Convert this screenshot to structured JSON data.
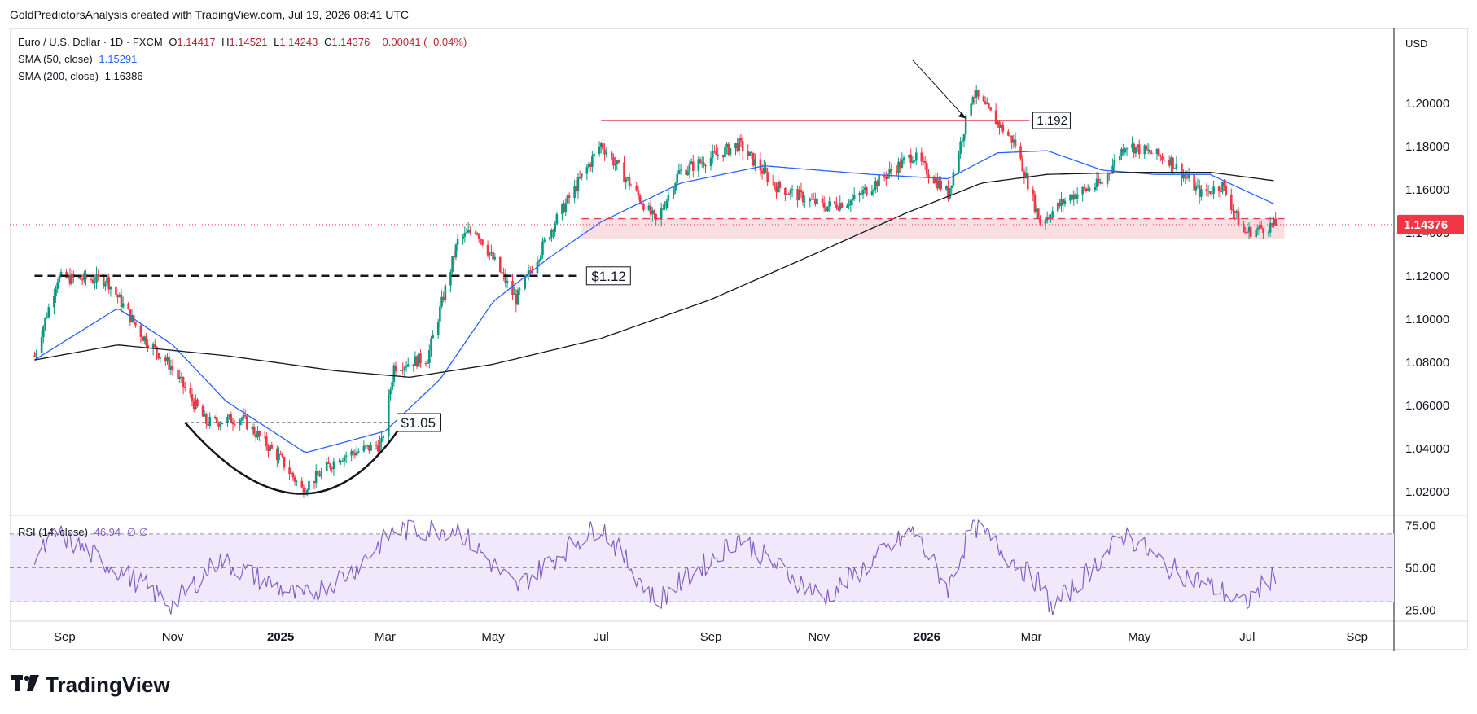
{
  "header": {
    "attribution": "GoldPredictorsAnalysis created with TradingView.com, Jul 19, 2026 08:41 UTC"
  },
  "legend": {
    "symbol": "Euro / U.S. Dollar · 1D · FXCM",
    "open_label": "O",
    "open": "1.14417",
    "high_label": "H",
    "high": "1.14521",
    "low_label": "L",
    "low": "1.14243",
    "close_label": "C",
    "close": "1.14376",
    "change": "−0.00041 (−0.04%)",
    "sma50_label": "SMA (50, close)",
    "sma50_value": "1.15291",
    "sma200_label": "SMA (200, close)",
    "sma200_value": "1.16386",
    "rsi_label": "RSI (14, close)",
    "rsi_value": "46.94",
    "rsi_extra": "∅  ∅"
  },
  "price_axis": {
    "currency": "USD",
    "ticks": [
      "1.20000",
      "1.18000",
      "1.16000",
      "1.14000",
      "1.12000",
      "1.10000",
      "1.08000",
      "1.06000",
      "1.04000",
      "1.02000"
    ],
    "last_price": "1.14376"
  },
  "rsi_axis": {
    "ticks": [
      "75.00",
      "50.00",
      "25.00"
    ]
  },
  "time_axis": {
    "labels": [
      "Sep",
      "Nov",
      "2025",
      "Mar",
      "May",
      "Jul",
      "Sep",
      "Nov",
      "2026",
      "Mar",
      "May",
      "Jul",
      "Sep"
    ]
  },
  "annotations": {
    "level_112": "$1.12",
    "level_105": "$1.05",
    "level_1192": "1.192"
  },
  "colors": {
    "up": "#089981",
    "down": "#f23645",
    "sma50": "#2962ff",
    "sma200": "#131722",
    "rsi": "#7e57c2",
    "rsi_band": "#efe9fb",
    "resistance": "#e0404a",
    "support_zone": "#f7c9cf"
  },
  "chart_data": {
    "type": "line",
    "title": "Euro / U.S. Dollar · 1D · FXCM",
    "xlabel": "",
    "ylabel": "",
    "ylim": [
      1.012,
      1.212
    ],
    "series": [
      {
        "name": "Euro / U.S. Dollar",
        "x": [
          "2024-08-15",
          "2024-08-28",
          "2024-09-25",
          "2024-10-15",
          "2024-10-31",
          "2024-11-20",
          "2024-12-10",
          "2025-01-01",
          "2025-01-13",
          "2025-02-03",
          "2025-02-27",
          "2025-03-06",
          "2025-03-25",
          "2025-04-11",
          "2025-04-21",
          "2025-05-14",
          "2025-06-05",
          "2025-07-01",
          "2025-07-17",
          "2025-08-01",
          "2025-08-14",
          "2025-09-17",
          "2025-10-07",
          "2025-11-04",
          "2025-11-20",
          "2025-12-24",
          "2026-01-13",
          "2026-01-27",
          "2026-02-20",
          "2026-03-06",
          "2026-03-23",
          "2026-04-10",
          "2026-04-23",
          "2026-05-18",
          "2026-06-05",
          "2026-06-17",
          "2026-06-29",
          "2026-07-17"
        ],
        "values": [
          1.083,
          1.119,
          1.118,
          1.092,
          1.078,
          1.052,
          1.054,
          1.035,
          1.021,
          1.036,
          1.042,
          1.078,
          1.082,
          1.136,
          1.142,
          1.109,
          1.145,
          1.181,
          1.163,
          1.145,
          1.168,
          1.181,
          1.162,
          1.152,
          1.155,
          1.176,
          1.158,
          1.205,
          1.181,
          1.145,
          1.157,
          1.163,
          1.181,
          1.174,
          1.158,
          1.162,
          1.14,
          1.14376
        ]
      },
      {
        "name": "SMA (50, close)",
        "x": [
          "2024-08-15",
          "2024-10-01",
          "2024-11-01",
          "2024-12-01",
          "2025-01-15",
          "2025-03-01",
          "2025-04-01",
          "2025-05-01",
          "2025-06-01",
          "2025-07-01",
          "2025-08-15",
          "2025-10-01",
          "2025-12-01",
          "2026-01-13",
          "2026-02-10",
          "2026-03-10",
          "2026-04-10",
          "2026-05-10",
          "2026-06-10",
          "2026-07-17"
        ],
        "values": [
          1.081,
          1.105,
          1.088,
          1.062,
          1.038,
          1.048,
          1.072,
          1.108,
          1.128,
          1.145,
          1.163,
          1.171,
          1.167,
          1.165,
          1.177,
          1.178,
          1.169,
          1.167,
          1.167,
          1.153
        ]
      },
      {
        "name": "SMA (200, close)",
        "x": [
          "2024-08-15",
          "2024-10-01",
          "2024-12-01",
          "2025-02-01",
          "2025-03-15",
          "2025-05-01",
          "2025-07-01",
          "2025-09-01",
          "2025-11-01",
          "2025-12-20",
          "2026-02-01",
          "2026-03-10",
          "2026-05-01",
          "2026-06-10",
          "2026-07-17"
        ],
        "values": [
          1.081,
          1.088,
          1.083,
          1.076,
          1.073,
          1.079,
          1.091,
          1.109,
          1.131,
          1.149,
          1.163,
          1.167,
          1.168,
          1.168,
          1.164
        ]
      }
    ],
    "rsi": {
      "name": "RSI (14, close)",
      "ylim": [
        20,
        80
      ],
      "x": [
        "2024-08-15",
        "2024-08-28",
        "2024-10-15",
        "2024-11-01",
        "2024-11-27",
        "2025-01-13",
        "2025-02-10",
        "2025-03-06",
        "2025-04-11",
        "2025-05-14",
        "2025-06-20",
        "2025-07-01",
        "2025-08-01",
        "2025-09-17",
        "2025-10-15",
        "2025-11-04",
        "2025-12-24",
        "2026-01-13",
        "2026-01-27",
        "2026-03-06",
        "2026-03-13",
        "2026-04-23",
        "2026-05-18",
        "2026-06-17",
        "2026-06-29",
        "2026-07-17"
      ],
      "values": [
        55,
        70,
        40,
        28,
        55,
        32,
        48,
        72,
        73,
        38,
        68,
        75,
        30,
        68,
        46,
        32,
        72,
        38,
        76,
        40,
        26,
        70,
        50,
        36,
        28,
        47
      ],
      "bands": [
        70,
        50,
        30
      ]
    }
  }
}
